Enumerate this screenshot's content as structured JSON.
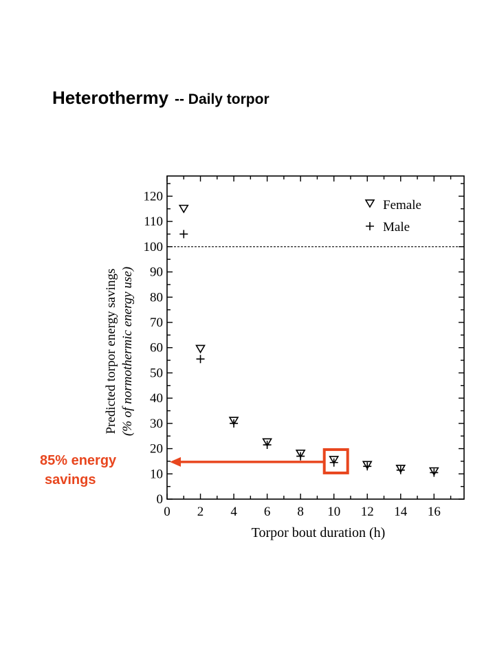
{
  "slide": {
    "title_main": "Heterothermy",
    "title_sub": "-- Daily torpor"
  },
  "callout": {
    "line1": "85% energy",
    "line2": "savings",
    "color": "#e8461e"
  },
  "chart_data": {
    "type": "scatter",
    "xlabel": "Torpor bout duration (h)",
    "ylabel_line1": "Predicted torpor energy savings",
    "ylabel_line2": "(% of normothermic energy use)",
    "xlim": [
      0,
      17.8
    ],
    "ylim": [
      0,
      128
    ],
    "x_ticks": [
      0,
      2,
      4,
      6,
      8,
      10,
      12,
      14,
      16
    ],
    "y_ticks": [
      0,
      10,
      20,
      30,
      40,
      50,
      60,
      70,
      80,
      90,
      100,
      110,
      120
    ],
    "reference_line": 100,
    "grid": false,
    "legend_position": "top-right",
    "series": [
      {
        "name": "Female",
        "marker": "open-triangle-down",
        "points": [
          {
            "x": 1,
            "y": 115
          },
          {
            "x": 2,
            "y": 59.5
          },
          {
            "x": 4,
            "y": 31
          },
          {
            "x": 6,
            "y": 22.5
          },
          {
            "x": 8,
            "y": 18
          },
          {
            "x": 10,
            "y": 15.5
          },
          {
            "x": 12,
            "y": 13.5
          },
          {
            "x": 14,
            "y": 12
          },
          {
            "x": 16,
            "y": 11
          }
        ]
      },
      {
        "name": "Male",
        "marker": "plus",
        "points": [
          {
            "x": 1,
            "y": 105
          },
          {
            "x": 2,
            "y": 55.5
          },
          {
            "x": 4,
            "y": 30
          },
          {
            "x": 6,
            "y": 21.5
          },
          {
            "x": 8,
            "y": 17
          },
          {
            "x": 10,
            "y": 14.5
          },
          {
            "x": 12,
            "y": 13
          },
          {
            "x": 14,
            "y": 11.5
          },
          {
            "x": 16,
            "y": 10.5
          }
        ]
      }
    ],
    "highlight": {
      "x": 10,
      "y": 15,
      "color": "#e8461e"
    }
  }
}
